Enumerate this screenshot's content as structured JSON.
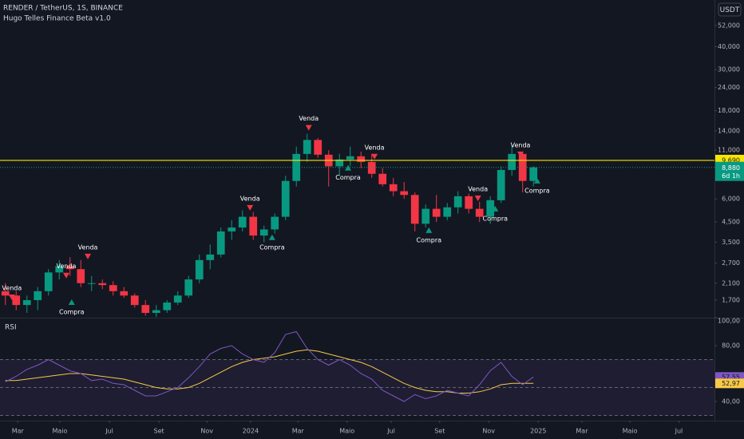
{
  "chart_data": {
    "type": "candlestick",
    "title": "RENDER / TetherUS, 1S, BINANCE",
    "indicator": "Hugo Telles Finance Beta v1.0",
    "currency": "USDT",
    "log_scale": true,
    "up_color": "#089981",
    "down_color": "#f23645",
    "x": [
      1,
      3,
      5,
      7,
      9,
      11,
      13,
      15,
      17,
      19,
      21,
      23,
      25,
      27,
      29,
      31,
      33,
      35,
      37,
      39,
      41,
      43,
      45,
      47,
      49,
      51,
      53,
      55,
      57,
      59,
      61,
      63,
      65,
      67,
      69,
      71,
      73,
      75,
      77,
      79,
      81,
      83,
      85,
      87,
      89,
      91,
      93,
      95,
      97,
      99
    ],
    "candles": [
      [
        1.9,
        2.1,
        1.6,
        1.8
      ],
      [
        1.8,
        1.9,
        1.5,
        1.6
      ],
      [
        1.6,
        1.8,
        1.45,
        1.7
      ],
      [
        1.7,
        2.0,
        1.5,
        1.9
      ],
      [
        1.9,
        2.5,
        1.8,
        2.4
      ],
      [
        2.4,
        2.8,
        2.2,
        2.6
      ],
      [
        2.6,
        2.9,
        2.3,
        2.5
      ],
      [
        2.5,
        2.8,
        2.0,
        2.1
      ],
      [
        2.1,
        2.3,
        1.9,
        2.1
      ],
      [
        2.1,
        2.2,
        1.95,
        2.05
      ],
      [
        2.05,
        2.15,
        1.8,
        1.9
      ],
      [
        1.9,
        2.0,
        1.75,
        1.8
      ],
      [
        1.8,
        1.85,
        1.55,
        1.6
      ],
      [
        1.6,
        1.7,
        1.4,
        1.45
      ],
      [
        1.45,
        1.6,
        1.38,
        1.5
      ],
      [
        1.5,
        1.7,
        1.45,
        1.65
      ],
      [
        1.65,
        1.9,
        1.6,
        1.8
      ],
      [
        1.8,
        2.3,
        1.75,
        2.2
      ],
      [
        2.2,
        3.0,
        2.1,
        2.8
      ],
      [
        2.8,
        3.4,
        2.5,
        3.0
      ],
      [
        3.0,
        4.2,
        2.9,
        4.0
      ],
      [
        4.0,
        4.6,
        3.6,
        4.2
      ],
      [
        4.2,
        5.2,
        4.0,
        4.8
      ],
      [
        4.8,
        5.1,
        3.6,
        3.8
      ],
      [
        3.8,
        4.3,
        3.5,
        4.1
      ],
      [
        4.1,
        5.0,
        3.9,
        4.8
      ],
      [
        4.8,
        8.0,
        4.6,
        7.5
      ],
      [
        7.5,
        11.5,
        7.0,
        10.5
      ],
      [
        10.5,
        13.5,
        9.5,
        12.5
      ],
      [
        12.5,
        12.8,
        10.0,
        10.4
      ],
      [
        10.4,
        11.0,
        7.0,
        9.0
      ],
      [
        9.0,
        10.5,
        8.0,
        9.8
      ],
      [
        9.8,
        11.5,
        9.0,
        10.2
      ],
      [
        10.2,
        10.8,
        8.8,
        9.5
      ],
      [
        9.5,
        10.5,
        7.8,
        8.2
      ],
      [
        8.2,
        8.8,
        7.0,
        7.2
      ],
      [
        7.2,
        7.8,
        6.2,
        6.6
      ],
      [
        6.6,
        7.4,
        6.0,
        6.3
      ],
      [
        6.3,
        6.5,
        4.0,
        4.4
      ],
      [
        4.4,
        5.6,
        4.2,
        5.3
      ],
      [
        5.3,
        6.3,
        4.5,
        4.8
      ],
      [
        4.8,
        5.7,
        4.6,
        5.4
      ],
      [
        5.4,
        6.6,
        5.0,
        6.2
      ],
      [
        6.2,
        6.4,
        5.0,
        5.3
      ],
      [
        5.3,
        5.8,
        4.5,
        4.8
      ],
      [
        4.8,
        6.2,
        4.4,
        5.9
      ],
      [
        5.9,
        9.0,
        5.7,
        8.6
      ],
      [
        8.6,
        11.8,
        8.0,
        10.5
      ],
      [
        10.5,
        10.8,
        6.5,
        7.5
      ],
      [
        7.5,
        9.0,
        7.0,
        8.88
      ]
    ],
    "xlim": [
      0,
      132.6
    ],
    "xticks": [
      {
        "value": 3.3,
        "label": "Mar"
      },
      {
        "value": 11.1,
        "label": "Maio"
      },
      {
        "value": 20.3,
        "label": "Jul"
      },
      {
        "value": 29.5,
        "label": "Set"
      },
      {
        "value": 38.4,
        "label": "Nov"
      },
      {
        "value": 46.5,
        "label": "2024"
      },
      {
        "value": 55.3,
        "label": "Mar"
      },
      {
        "value": 64.4,
        "label": "Maio"
      },
      {
        "value": 72.6,
        "label": "Jul"
      },
      {
        "value": 81.6,
        "label": "Set"
      },
      {
        "value": 90.7,
        "label": "Nov"
      },
      {
        "value": 99.9,
        "label": "2025"
      },
      {
        "value": 108,
        "label": "Mar"
      },
      {
        "value": 116.9,
        "label": "Maio"
      },
      {
        "value": 126,
        "label": "Jul"
      }
    ],
    "ylim": [
      1.38,
      71.4
    ],
    "yticks": [
      {
        "value": 52,
        "label": "52,000"
      },
      {
        "value": 40,
        "label": "40,000"
      },
      {
        "value": 30,
        "label": "30,000"
      },
      {
        "value": 24,
        "label": "24,000"
      },
      {
        "value": 18,
        "label": "18,000"
      },
      {
        "value": 14,
        "label": "14,000"
      },
      {
        "value": 11,
        "label": "11,000"
      },
      {
        "value": 6,
        "label": "6,000"
      },
      {
        "value": 4.5,
        "label": "4,500"
      },
      {
        "value": 3.5,
        "label": "3,500"
      },
      {
        "value": 2.7,
        "label": "2,700"
      },
      {
        "value": 2.1,
        "label": "2,100"
      },
      {
        "value": 1.7,
        "label": "1,700"
      }
    ],
    "hline": {
      "value": 9.69,
      "label": "9,690",
      "color": "#f7e600"
    },
    "last_price": {
      "value": 8.88,
      "label": "8,880",
      "countdown": "6d 1h"
    },
    "signals": [
      {
        "label": "Venda",
        "x": 2.2,
        "price": 1.77
      },
      {
        "label": "Venda",
        "x": 12.3,
        "price": 2.32
      },
      {
        "label": "Venda",
        "x": 16.3,
        "price": 2.94
      },
      {
        "label": "Venda",
        "x": 46.4,
        "price": 5.39
      },
      {
        "label": "Venda",
        "x": 57.3,
        "price": 14.6
      },
      {
        "label": "Venda",
        "x": 69.5,
        "price": 10.2
      },
      {
        "label": "Venda",
        "x": 88.7,
        "price": 6.07
      },
      {
        "label": "Venda",
        "x": 96.6,
        "price": 10.5
      },
      {
        "label": "Compra",
        "x": 13.3,
        "price": 1.65
      },
      {
        "label": "Compra",
        "x": 50.5,
        "price": 3.7
      },
      {
        "label": "Compra",
        "x": 64.6,
        "price": 8.8
      },
      {
        "label": "Compra",
        "x": 79.6,
        "price": 4.04
      },
      {
        "label": "Compra",
        "x": 91.9,
        "price": 5.29
      },
      {
        "label": "Compra",
        "x": 99.7,
        "price": 7.49
      }
    ],
    "rsi": {
      "label": "RSI",
      "color": "#7e57c2",
      "ma_color": "#f7c948",
      "values": [
        54,
        58,
        63,
        66,
        70,
        66,
        62,
        60,
        55,
        56,
        53,
        52,
        48,
        44,
        44,
        47,
        50,
        57,
        65,
        74,
        78,
        80,
        74,
        70,
        68,
        75,
        88,
        90,
        78,
        70,
        66,
        70,
        66,
        60,
        56,
        48,
        44,
        40,
        45,
        42,
        44,
        48,
        46,
        44,
        52,
        62,
        68,
        58,
        52,
        57.55
      ],
      "ma": [
        55,
        55,
        56,
        57,
        58,
        59,
        60,
        60,
        59,
        58,
        57,
        56,
        54,
        52,
        50,
        49,
        49,
        50,
        53,
        57,
        61,
        65,
        68,
        70,
        71,
        72,
        74,
        76,
        77,
        76,
        74,
        72,
        70,
        68,
        65,
        61,
        57,
        53,
        50,
        48,
        47,
        47,
        46,
        46,
        47,
        49,
        52,
        53,
        53,
        52.97
      ],
      "ylim": [
        28,
        100
      ],
      "yticks": [
        {
          "value": 100,
          "label": "100,00"
        },
        {
          "value": 80,
          "label": "80,00"
        },
        {
          "value": 40,
          "label": "40,00"
        }
      ],
      "bands": [
        70,
        50,
        30
      ],
      "last": {
        "value": 57.55,
        "label": "57,55"
      },
      "ma_last": {
        "value": 52.97,
        "label": "52,97"
      }
    }
  }
}
